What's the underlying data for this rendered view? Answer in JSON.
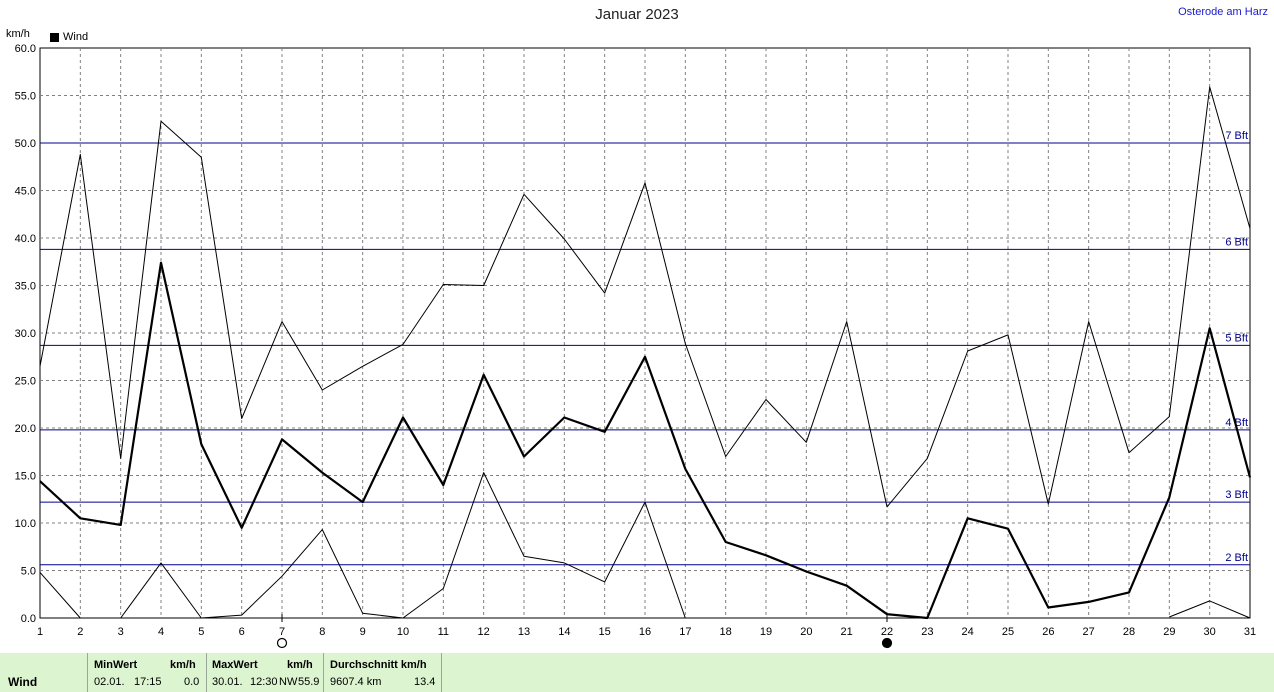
{
  "location": "Osterode am Harz",
  "legend": {
    "label": "Wind"
  },
  "chart_data": {
    "type": "line",
    "title": "Januar 2023",
    "ylabel": "km/h",
    "xlabel": "",
    "ylim": [
      0,
      60
    ],
    "xlim": [
      1,
      31
    ],
    "yticks": [
      0,
      5,
      10,
      15,
      20,
      25,
      30,
      35,
      40,
      45,
      50,
      55,
      60
    ],
    "ytick_labels": [
      "0.0",
      "5.0",
      "10.0",
      "15.0",
      "20.0",
      "25.0",
      "30.0",
      "35.0",
      "40.0",
      "45.0",
      "50.0",
      "55.0",
      "60.0"
    ],
    "x": [
      1,
      2,
      3,
      4,
      5,
      6,
      7,
      8,
      9,
      10,
      11,
      12,
      13,
      14,
      15,
      16,
      17,
      18,
      19,
      20,
      21,
      22,
      23,
      24,
      25,
      26,
      27,
      28,
      29,
      30,
      31
    ],
    "grid": true,
    "series": [
      {
        "role": "max",
        "width": 1,
        "values": [
          26.5,
          48.8,
          16.8,
          52.3,
          48.5,
          21.0,
          31.2,
          24.0,
          26.5,
          28.8,
          35.1,
          35.0,
          44.6,
          39.9,
          34.2,
          45.8,
          28.9,
          17.0,
          23.0,
          18.5,
          31.2,
          11.7,
          16.8,
          28.1,
          29.8,
          12.0,
          31.2,
          17.4,
          21.2,
          55.9,
          41.0
        ]
      },
      {
        "role": "avg",
        "width": 2.2,
        "values": [
          14.4,
          10.5,
          9.8,
          37.4,
          18.3,
          9.5,
          18.8,
          15.3,
          12.2,
          21.1,
          14.0,
          25.6,
          17.0,
          21.1,
          19.6,
          27.5,
          15.7,
          8.0,
          6.6,
          4.9,
          3.4,
          0.4,
          0.0,
          10.5,
          9.4,
          1.1,
          1.7,
          2.7,
          12.7,
          30.5,
          14.8
        ]
      },
      {
        "role": "min",
        "width": 1,
        "values": [
          4.8,
          0.0,
          0.0,
          5.8,
          0.0,
          0.3,
          4.4,
          9.3,
          0.5,
          0.0,
          3.1,
          15.3,
          6.5,
          5.8,
          3.8,
          12.2,
          0.0,
          null,
          null,
          null,
          null,
          null,
          null,
          null,
          null,
          null,
          null,
          null,
          0.1,
          1.8,
          0.0
        ]
      }
    ],
    "reference_lines": [
      {
        "value": 5.6,
        "label": "2 Bft"
      },
      {
        "value": 12.2,
        "label": "3 Bft"
      },
      {
        "value": 19.8,
        "label": "4 Bft"
      },
      {
        "value": 28.7,
        "label": "5 Bft"
      },
      {
        "value": 38.8,
        "label": "6 Bft"
      },
      {
        "value": 50.0,
        "label": "7 Bft"
      }
    ],
    "moon_markers": [
      {
        "day": 7,
        "phase": "full"
      },
      {
        "day": 22,
        "phase": "new"
      }
    ]
  },
  "footer": {
    "row_label": "Wind",
    "min": {
      "header": "MinWert",
      "unit": "km/h",
      "date": "02.01.",
      "time": "17:15",
      "value": "0.0"
    },
    "max": {
      "header": "MaxWert",
      "unit": "km/h",
      "date": "30.01.",
      "time": "12:30",
      "dir": "NW",
      "value": "55.9"
    },
    "avg": {
      "header": "Durchschnitt km/h",
      "distance": "9607.4 km",
      "value": "13.4"
    }
  }
}
